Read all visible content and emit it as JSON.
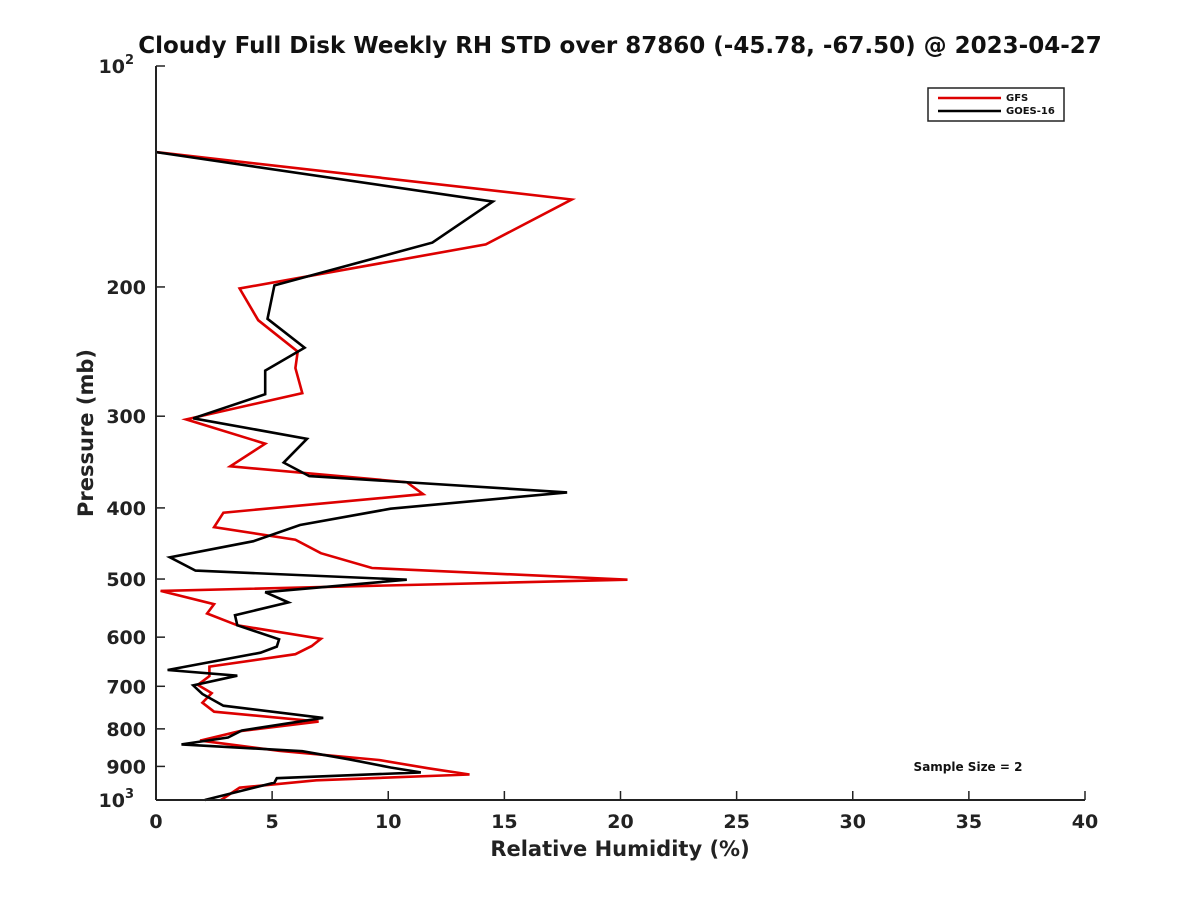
{
  "chart_data": {
    "type": "line",
    "title": "Cloudy Full Disk Weekly RH STD over 87860 (-45.78, -67.50) @ 2023-04-27",
    "xlabel": "Relative Humidity (%)",
    "ylabel": "Pressure (mb)",
    "xlim": [
      0,
      40
    ],
    "ylim": [
      100,
      1000
    ],
    "y_scale": "log",
    "y_reversed": true,
    "grid": false,
    "legend_position": "top-right",
    "x_ticks": [
      "0",
      "5",
      "10",
      "15",
      "20",
      "25",
      "30",
      "35",
      "40"
    ],
    "y_ticks": [
      {
        "base": "10",
        "exp": "2",
        "value": 100
      },
      {
        "base": "200",
        "exp": "",
        "value": 200
      },
      {
        "base": "300",
        "exp": "",
        "value": 300
      },
      {
        "base": "400",
        "exp": "",
        "value": 400
      },
      {
        "base": "500",
        "exp": "",
        "value": 500
      },
      {
        "base": "600",
        "exp": "",
        "value": 600
      },
      {
        "base": "700",
        "exp": "",
        "value": 700
      },
      {
        "base": "800",
        "exp": "",
        "value": 800
      },
      {
        "base": "900",
        "exp": "",
        "value": 900
      },
      {
        "base": "10",
        "exp": "3",
        "value": 1000
      }
    ],
    "annotation": "Sample Size = 2",
    "series": [
      {
        "name": "GFS",
        "color": "#dd0000",
        "points": [
          [
            0,
            131
          ],
          [
            17.9,
            152
          ],
          [
            14.2,
            175
          ],
          [
            3.6,
            201
          ],
          [
            4.4,
            222
          ],
          [
            6.1,
            245
          ],
          [
            6.0,
            258
          ],
          [
            6.3,
            279
          ],
          [
            1.3,
            303
          ],
          [
            4.7,
            327
          ],
          [
            3.2,
            351
          ],
          [
            10.8,
            369
          ],
          [
            11.5,
            383
          ],
          [
            2.9,
            406
          ],
          [
            2.5,
            425
          ],
          [
            6.0,
            442
          ],
          [
            7.1,
            461
          ],
          [
            9.3,
            483
          ],
          [
            20.3,
            501
          ],
          [
            0.2,
            519
          ],
          [
            2.5,
            541
          ],
          [
            2.2,
            557
          ],
          [
            3.5,
            578
          ],
          [
            7.1,
            603
          ],
          [
            6.7,
            617
          ],
          [
            6.0,
            633
          ],
          [
            2.3,
            658
          ],
          [
            2.3,
            678
          ],
          [
            1.8,
            697
          ],
          [
            2.4,
            715
          ],
          [
            2.0,
            737
          ],
          [
            2.5,
            758
          ],
          [
            7.0,
            782
          ],
          [
            3.6,
            806
          ],
          [
            1.9,
            830
          ],
          [
            5.3,
            857
          ],
          [
            9.6,
            882
          ],
          [
            11.7,
            905
          ],
          [
            13.5,
            923
          ],
          [
            6.9,
            940
          ],
          [
            3.6,
            962
          ],
          [
            2.8,
            1000
          ]
        ]
      },
      {
        "name": "GOES-16",
        "color": "#000000",
        "points": [
          [
            0,
            131
          ],
          [
            14.5,
            153
          ],
          [
            11.9,
            174
          ],
          [
            5.1,
            199
          ],
          [
            4.8,
            221
          ],
          [
            6.4,
            242
          ],
          [
            4.7,
            260
          ],
          [
            4.7,
            280
          ],
          [
            1.6,
            302
          ],
          [
            6.5,
            322
          ],
          [
            5.5,
            347
          ],
          [
            6.6,
            362
          ],
          [
            17.7,
            381
          ],
          [
            10.1,
            401
          ],
          [
            6.2,
            422
          ],
          [
            4.2,
            444
          ],
          [
            0.6,
            467
          ],
          [
            1.7,
            487
          ],
          [
            10.8,
            501
          ],
          [
            4.7,
            521
          ],
          [
            5.7,
            538
          ],
          [
            3.4,
            560
          ],
          [
            3.5,
            578
          ],
          [
            5.3,
            604
          ],
          [
            5.2,
            618
          ],
          [
            4.5,
            630
          ],
          [
            0.5,
            665
          ],
          [
            3.5,
            677
          ],
          [
            1.6,
            698
          ],
          [
            2.0,
            717
          ],
          [
            2.9,
            744
          ],
          [
            7.2,
            773
          ],
          [
            3.7,
            804
          ],
          [
            3.1,
            822
          ],
          [
            1.1,
            840
          ],
          [
            6.3,
            858
          ],
          [
            8.3,
            880
          ],
          [
            10.1,
            903
          ],
          [
            11.4,
            917
          ],
          [
            5.2,
            934
          ],
          [
            5.1,
            947
          ],
          [
            2.1,
            1000
          ]
        ]
      }
    ]
  }
}
